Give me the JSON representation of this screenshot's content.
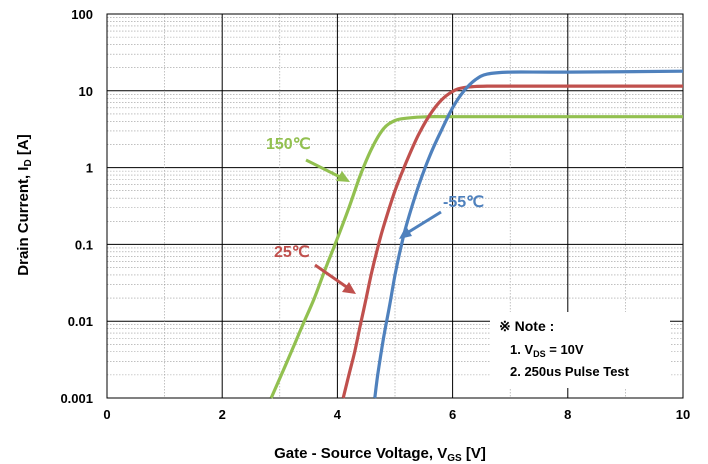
{
  "chart_data": {
    "type": "line",
    "title": "",
    "xlabel": {
      "main": "Gate - Source Voltage, V",
      "sub": "GS",
      "unit": " [V]"
    },
    "ylabel": {
      "main": "Drain Current, I",
      "sub": "D",
      "unit": " [A]"
    },
    "xlim": [
      0,
      10
    ],
    "ylim": [
      0.001,
      100
    ],
    "yscale": "log",
    "grid": true,
    "x_ticks": [
      "0",
      "2",
      "4",
      "6",
      "8",
      "10"
    ],
    "y_ticks": [
      "0.001",
      "0.01",
      "0.1",
      "1",
      "10",
      "100"
    ],
    "series": [
      {
        "name": "150℃",
        "color": "#92c050",
        "x": [
          2.85,
          3.0,
          3.2,
          3.4,
          3.6,
          3.8,
          4.0,
          4.2,
          4.4,
          4.6,
          4.8,
          5.0,
          5.2,
          5.6,
          6.0,
          8.0,
          10.0
        ],
        "y": [
          0.001,
          0.0018,
          0.004,
          0.009,
          0.02,
          0.05,
          0.12,
          0.3,
          0.8,
          1.8,
          3.2,
          4.1,
          4.4,
          4.6,
          4.6,
          4.6,
          4.6
        ]
      },
      {
        "name": "25℃",
        "color": "#c0504d",
        "x": [
          4.1,
          4.2,
          4.3,
          4.4,
          4.5,
          4.6,
          4.7,
          4.8,
          5.0,
          5.2,
          5.4,
          5.6,
          5.8,
          6.0,
          6.2,
          6.6,
          8.0,
          10.0
        ],
        "y": [
          0.001,
          0.002,
          0.004,
          0.009,
          0.02,
          0.045,
          0.09,
          0.17,
          0.5,
          1.2,
          2.6,
          4.8,
          7.5,
          9.8,
          11.0,
          11.5,
          11.5,
          11.5
        ]
      },
      {
        "name": "-55℃",
        "color": "#4f81bd",
        "x": [
          4.65,
          4.7,
          4.8,
          4.9,
          5.0,
          5.1,
          5.2,
          5.4,
          5.6,
          5.8,
          6.0,
          6.2,
          6.4,
          6.6,
          7.0,
          8.0,
          10.0
        ],
        "y": [
          0.001,
          0.002,
          0.006,
          0.015,
          0.04,
          0.09,
          0.18,
          0.55,
          1.4,
          3.0,
          6.0,
          10.0,
          14.0,
          16.5,
          17.5,
          17.5,
          18.0
        ]
      }
    ],
    "annotations": [
      {
        "text": "150℃",
        "color": "#92c050"
      },
      {
        "text": "25℃",
        "color": "#c0504d"
      },
      {
        "text": "-55℃",
        "color": "#4f81bd"
      }
    ],
    "note": {
      "heading": "※ Note :",
      "line1": {
        "prefix": "1. V",
        "sub": "DS",
        "suffix": " = 10V"
      },
      "line2": "2. 250us Pulse Test"
    }
  }
}
